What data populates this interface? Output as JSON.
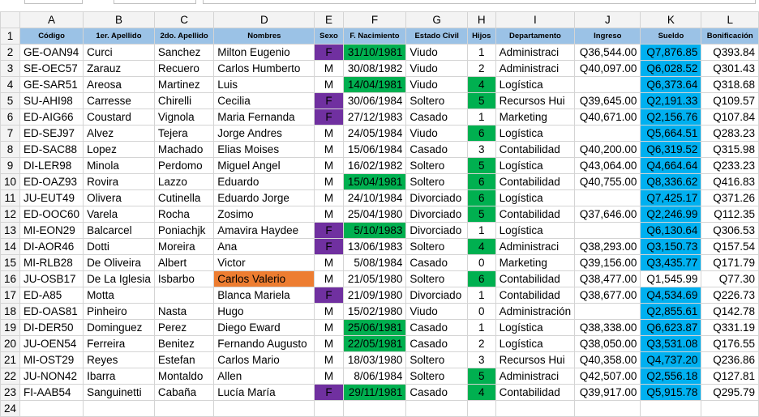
{
  "columns": [
    "A",
    "B",
    "C",
    "D",
    "E",
    "F",
    "G",
    "H",
    "I",
    "J",
    "K",
    "L"
  ],
  "headers": [
    "Código",
    "1er. Apellido",
    "2do. Apellido",
    "Nombres",
    "Sexo",
    "F. Nacimiento",
    "Estado Civil",
    "Hijos",
    "Departamento",
    "Ingreso",
    "Sueldo",
    "Bonificación"
  ],
  "highlight_colors": {
    "female": "#7030a0",
    "birth_1981": "#00b050",
    "hijos_highlight": "#00b050",
    "sueldo_highlight": "#00b0f0",
    "duplicate_name": "#ed7d31",
    "header_fill": "#9bc2e6"
  },
  "rows": [
    [
      "GE-OAN94",
      "Curci",
      "Sanchez",
      "Milton Eugenio",
      "F",
      "31/10/1981",
      "Viudo",
      "1",
      "Administraci",
      "Q36,544.00",
      "Q7,876.85",
      "Q393.84"
    ],
    [
      "SE-OEC57",
      "Zarauz",
      "Recuero",
      "Carlos Humberto",
      "M",
      "30/08/1982",
      "Viudo",
      "2",
      "Administraci",
      "Q40,097.00",
      "Q6,028.52",
      "Q301.43"
    ],
    [
      "GE-SAR51",
      "Areosa",
      "Martinez",
      "Luis",
      "M",
      "14/04/1981",
      "Viudo",
      "4",
      "Logística",
      "",
      "Q6,373.64",
      "Q318.68"
    ],
    [
      "SU-AHI98",
      "Carresse",
      "Chirelli",
      "Cecilia",
      "F",
      "30/06/1984",
      "Soltero",
      "5",
      "Recursos Hui",
      "Q39,645.00",
      "Q2,191.33",
      "Q109.57"
    ],
    [
      "ED-AIG66",
      "Coustard",
      "Vignola",
      "Maria Fernanda",
      "F",
      "27/12/1983",
      "Casado",
      "1",
      "Marketing",
      "Q40,671.00",
      "Q2,156.76",
      "Q107.84"
    ],
    [
      "ED-SEJ97",
      "Alvez",
      "Tejera",
      "Jorge Andres",
      "M",
      "24/05/1984",
      "Viudo",
      "6",
      "Logística",
      "",
      "Q5,664.51",
      "Q283.23"
    ],
    [
      "ED-SAC88",
      "Lopez",
      "Machado",
      "Elias Moises",
      "M",
      "15/06/1984",
      "Casado",
      "3",
      "Contabilidad",
      "Q40,200.00",
      "Q6,319.52",
      "Q315.98"
    ],
    [
      "DI-LER98",
      "Minola",
      "Perdomo",
      "Miguel Angel",
      "M",
      "16/02/1982",
      "Soltero",
      "5",
      "Logística",
      "Q43,064.00",
      "Q4,664.64",
      "Q233.23"
    ],
    [
      "ED-OAZ93",
      "Rovira",
      "Lazzo",
      "Eduardo",
      "M",
      "15/04/1981",
      "Soltero",
      "6",
      "Contabilidad",
      "Q40,755.00",
      "Q8,336.62",
      "Q416.83"
    ],
    [
      "JU-EUT49",
      "Olivera",
      "Cutinella",
      "Eduardo Jorge",
      "M",
      "24/10/1984",
      "Divorciado",
      "6",
      "Logística",
      "",
      "Q7,425.17",
      "Q371.26"
    ],
    [
      "ED-OOC60",
      "Varela",
      "Rocha",
      "Zosimo",
      "M",
      "25/04/1980",
      "Divorciado",
      "5",
      "Contabilidad",
      "Q37,646.00",
      "Q2,246.99",
      "Q112.35"
    ],
    [
      "MI-EON29",
      "Balcarcel",
      "Poniachjk",
      "Amavira Haydee",
      "F",
      "5/10/1983",
      "Divorciado",
      "1",
      "Logística",
      "",
      "Q6,130.64",
      "Q306.53"
    ],
    [
      "DI-AOR46",
      "Dotti",
      "Moreira",
      "Ana",
      "F",
      "13/06/1983",
      "Soltero",
      "4",
      "Administraci",
      "Q38,293.00",
      "Q3,150.73",
      "Q157.54"
    ],
    [
      "MI-RLB28",
      "De Oliveira",
      "Albert",
      "Victor",
      "M",
      "5/08/1984",
      "Casado",
      "0",
      "Marketing",
      "Q39,156.00",
      "Q3,435.77",
      "Q171.79"
    ],
    [
      "JU-OSB17",
      "De La Iglesia",
      "Isbarbo",
      "Carlos Valerio",
      "M",
      "21/05/1980",
      "Soltero",
      "6",
      "Contabilidad",
      "Q38,477.00",
      "Q1,545.99",
      "Q77.30"
    ],
    [
      "ED-A85",
      "Motta",
      "",
      "Blanca Mariela",
      "F",
      "21/09/1980",
      "Divorciado",
      "1",
      "Contabilidad",
      "Q38,677.00",
      "Q4,534.69",
      "Q226.73"
    ],
    [
      "ED-OAS81",
      "Pinheiro",
      "Nasta",
      "Hugo",
      "M",
      "15/02/1980",
      "Viudo",
      "0",
      "Administración",
      "",
      "Q2,855.61",
      "Q142.78"
    ],
    [
      "DI-DER50",
      "Dominguez",
      "Perez",
      "Diego Eward",
      "M",
      "25/06/1981",
      "Casado",
      "1",
      "Logística",
      "Q38,338.00",
      "Q6,623.87",
      "Q331.19"
    ],
    [
      "JU-OEN54",
      "Ferreira",
      "Benitez",
      "Fernando Augusto",
      "M",
      "22/05/1981",
      "Casado",
      "2",
      "Logística",
      "Q38,050.00",
      "Q3,531.08",
      "Q176.55"
    ],
    [
      "MI-OST29",
      "Reyes",
      "Estefan",
      "Carlos Mario",
      "M",
      "18/03/1980",
      "Soltero",
      "3",
      "Recursos Hui",
      "Q40,358.00",
      "Q4,737.20",
      "Q236.86"
    ],
    [
      "JU-NON42",
      "Ibarra",
      "Montaldo",
      "Allen",
      "M",
      "8/06/1984",
      "Soltero",
      "5",
      "Administraci",
      "Q42,507.00",
      "Q2,556.18",
      "Q127.81"
    ],
    [
      "FI-AAB54",
      "Sanguinetti",
      "Cabaña",
      "Lucía María",
      "F",
      "29/11/1981",
      "Casado",
      "4",
      "Contabilidad",
      "Q39,917.00",
      "Q5,915.78",
      "Q295.79"
    ]
  ]
}
